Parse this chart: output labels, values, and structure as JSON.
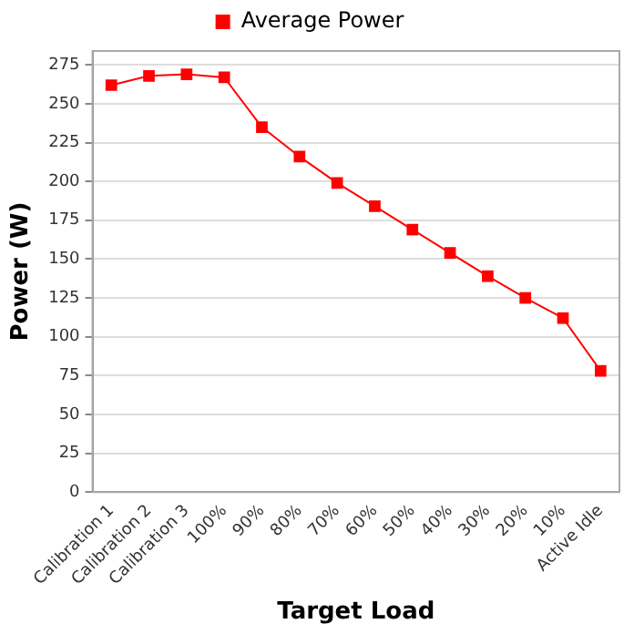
{
  "chart_data": {
    "type": "line",
    "xlabel": "Target Load",
    "ylabel": "Power (W)",
    "categories": [
      "Calibration 1",
      "Calibration 2",
      "Calibration 3",
      "100%",
      "90%",
      "80%",
      "70%",
      "60%",
      "50%",
      "40%",
      "30%",
      "20%",
      "10%",
      "Active Idle"
    ],
    "series": [
      {
        "name": "Average Power",
        "color": "#ff0000",
        "values": [
          262,
          268,
          269,
          267,
          235,
          216,
          199,
          184,
          169,
          154,
          139,
          125,
          112,
          78
        ]
      }
    ],
    "ylim": [
      0,
      284
    ],
    "yticks": [
      0,
      25,
      50,
      75,
      100,
      125,
      150,
      175,
      200,
      225,
      250,
      275
    ],
    "grid": "y",
    "legend": "top",
    "marker": "square",
    "line_style": "solid"
  }
}
